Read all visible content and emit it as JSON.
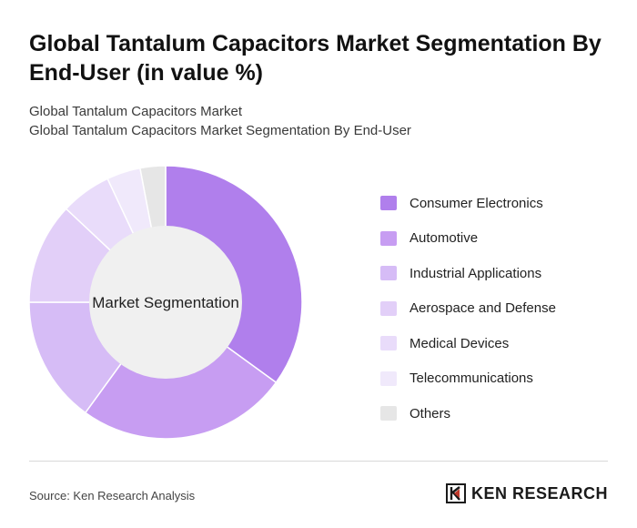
{
  "title": "Global Tantalum Capacitors Market Segmentation By End-User (in value %)",
  "subtitle_1": "Global Tantalum Capacitors Market",
  "subtitle_2": "Global Tantalum Capacitors Market Segmentation By End-User",
  "source": "Source: Ken Research Analysis",
  "brand": "KEN RESEARCH",
  "chart_data": {
    "type": "pie",
    "variant": "donut",
    "center_label": "Market Segmentation",
    "legend_position": "right",
    "categories": [
      "Consumer Electronics",
      "Automotive",
      "Industrial Applications",
      "Aerospace and Defense",
      "Medical Devices",
      "Telecommunications",
      "Others"
    ],
    "values": [
      35,
      25,
      15,
      12,
      6,
      4,
      3
    ],
    "colors": [
      "#b07fec",
      "#c79df2",
      "#d6bcf6",
      "#e2cff8",
      "#e9dcfa",
      "#f0e9fb",
      "#e6e6e6"
    ]
  }
}
